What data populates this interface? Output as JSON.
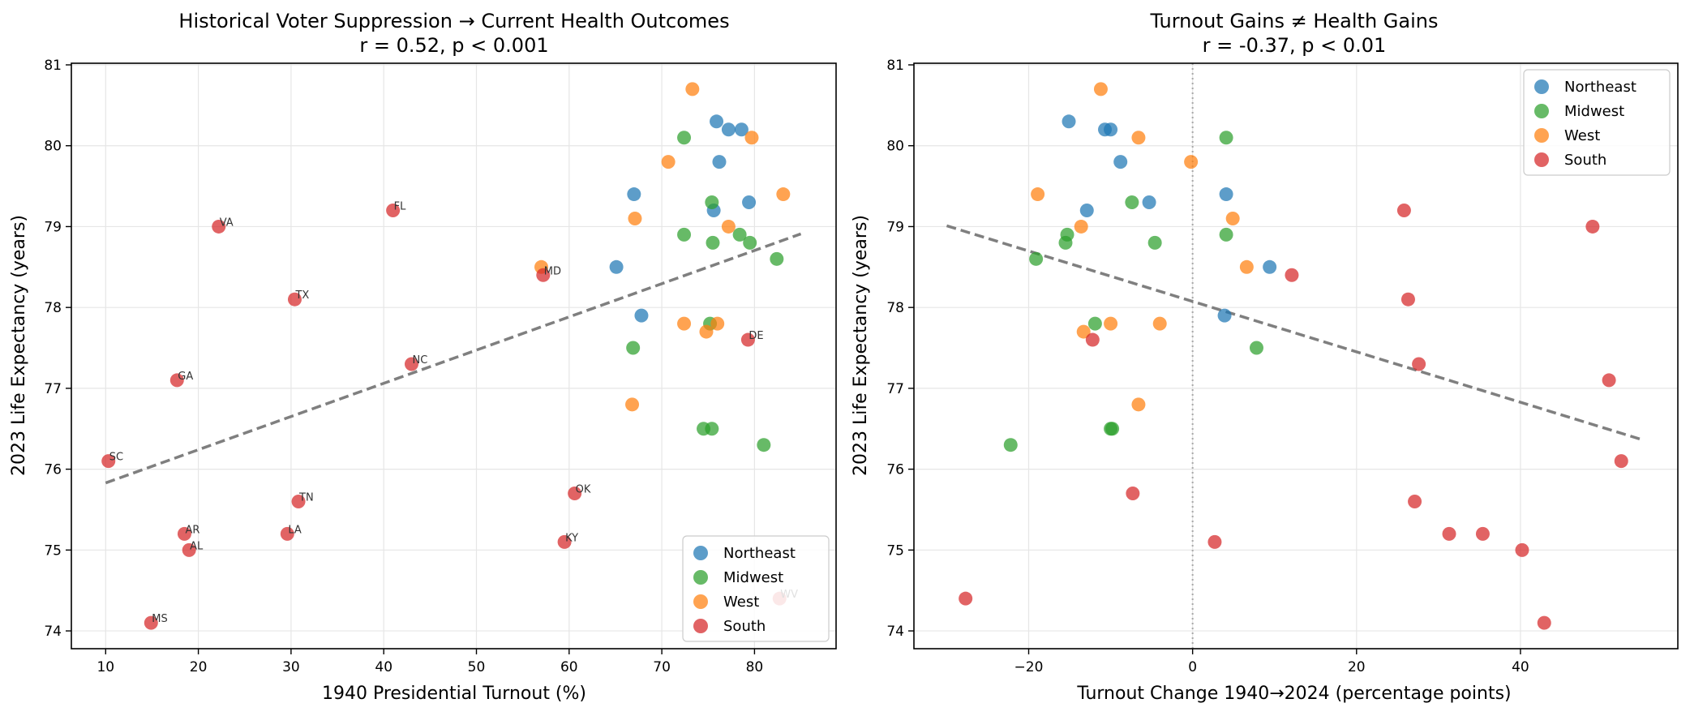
{
  "colors": {
    "Northeast": "#1f77b4",
    "Midwest": "#2ca02c",
    "West": "#ff7f0e",
    "South": "#d62728",
    "trend": "#7f7f7f",
    "grid": "#e6e6e6"
  },
  "chart_data": [
    {
      "type": "scatter",
      "title": "Historical Voter Suppression → Current Health Outcomes",
      "subtitle": "r = 0.52, p < 0.001",
      "xlabel": "1940 Presidential Turnout (%)",
      "ylabel": "2023 Life Expectancy (years)",
      "xlim": [
        6.3,
        88.8
      ],
      "ylim": [
        73.78,
        81.02
      ],
      "xticks": [
        10,
        20,
        30,
        40,
        50,
        60,
        70,
        80
      ],
      "yticks": [
        74,
        75,
        76,
        77,
        78,
        79,
        80,
        81
      ],
      "grid": true,
      "legend_position": "lower-right",
      "legend": [
        "Northeast",
        "Midwest",
        "West",
        "South"
      ],
      "trend_line": [
        [
          10.0,
          75.83
        ],
        [
          85.0,
          78.91
        ]
      ],
      "series": [
        {
          "name": "Northeast",
          "points": [
            {
              "x": 75.9,
              "y": 80.3
            },
            {
              "x": 77.2,
              "y": 80.2
            },
            {
              "x": 78.6,
              "y": 80.2
            },
            {
              "x": 76.2,
              "y": 79.8
            },
            {
              "x": 67.0,
              "y": 79.4
            },
            {
              "x": 79.4,
              "y": 79.3
            },
            {
              "x": 75.6,
              "y": 79.2
            },
            {
              "x": 65.1,
              "y": 78.5
            },
            {
              "x": 67.8,
              "y": 77.9
            }
          ]
        },
        {
          "name": "Midwest",
          "points": [
            {
              "x": 72.4,
              "y": 80.1
            },
            {
              "x": 75.4,
              "y": 79.3
            },
            {
              "x": 72.4,
              "y": 78.9
            },
            {
              "x": 78.4,
              "y": 78.9
            },
            {
              "x": 75.5,
              "y": 78.8
            },
            {
              "x": 79.5,
              "y": 78.8
            },
            {
              "x": 82.4,
              "y": 78.6
            },
            {
              "x": 75.2,
              "y": 77.8
            },
            {
              "x": 66.9,
              "y": 77.5
            },
            {
              "x": 74.5,
              "y": 76.5
            },
            {
              "x": 75.4,
              "y": 76.5
            },
            {
              "x": 81.0,
              "y": 76.3
            }
          ]
        },
        {
          "name": "West",
          "points": [
            {
              "x": 73.3,
              "y": 80.7
            },
            {
              "x": 79.7,
              "y": 80.1
            },
            {
              "x": 70.7,
              "y": 79.8
            },
            {
              "x": 83.1,
              "y": 79.4
            },
            {
              "x": 67.1,
              "y": 79.1
            },
            {
              "x": 77.2,
              "y": 79.0
            },
            {
              "x": 57.0,
              "y": 78.5
            },
            {
              "x": 72.4,
              "y": 77.8
            },
            {
              "x": 76.0,
              "y": 77.8
            },
            {
              "x": 74.8,
              "y": 77.7
            },
            {
              "x": 66.8,
              "y": 76.8
            }
          ]
        },
        {
          "name": "South",
          "points": [
            {
              "x": 41.0,
              "y": 79.2,
              "label": "FL"
            },
            {
              "x": 22.2,
              "y": 79.0,
              "label": "VA"
            },
            {
              "x": 57.2,
              "y": 78.4,
              "label": "MD"
            },
            {
              "x": 30.4,
              "y": 78.1,
              "label": "TX"
            },
            {
              "x": 79.3,
              "y": 77.6,
              "label": "DE"
            },
            {
              "x": 43.0,
              "y": 77.3,
              "label": "NC"
            },
            {
              "x": 17.7,
              "y": 77.1,
              "label": "GA"
            },
            {
              "x": 10.3,
              "y": 76.1,
              "label": "SC"
            },
            {
              "x": 60.6,
              "y": 75.7,
              "label": "OK"
            },
            {
              "x": 30.8,
              "y": 75.6,
              "label": "TN"
            },
            {
              "x": 18.5,
              "y": 75.2,
              "label": "AR"
            },
            {
              "x": 29.6,
              "y": 75.2,
              "label": "LA"
            },
            {
              "x": 59.5,
              "y": 75.1,
              "label": "KY"
            },
            {
              "x": 19.0,
              "y": 75.0,
              "label": "AL"
            },
            {
              "x": 82.7,
              "y": 74.4,
              "label": "WV"
            },
            {
              "x": 14.9,
              "y": 74.1,
              "label": "MS"
            }
          ]
        }
      ]
    },
    {
      "type": "scatter",
      "title": "Turnout Gains ≠ Health Gains",
      "subtitle": "r = -0.37, p < 0.01",
      "xlabel": "Turnout Change 1940→2024 (percentage points)",
      "ylabel": "2023 Life Expectancy (years)",
      "xlim": [
        -34.0,
        59.2
      ],
      "ylim": [
        73.78,
        81.02
      ],
      "xticks": [
        -20,
        0,
        20,
        40
      ],
      "yticks": [
        74,
        75,
        76,
        77,
        78,
        79,
        80,
        81
      ],
      "grid": true,
      "reference_line_x": 0,
      "legend_position": "upper-right",
      "legend": [
        "Northeast",
        "Midwest",
        "West",
        "South"
      ],
      "trend_line": [
        [
          -30.0,
          79.01
        ],
        [
          55.0,
          76.36
        ]
      ],
      "series": [
        {
          "name": "Northeast",
          "points": [
            {
              "x": -15.1,
              "y": 80.3
            },
            {
              "x": -10.7,
              "y": 80.2
            },
            {
              "x": -10.0,
              "y": 80.2
            },
            {
              "x": -8.8,
              "y": 79.8
            },
            {
              "x": 4.1,
              "y": 79.4
            },
            {
              "x": -5.3,
              "y": 79.3
            },
            {
              "x": -12.9,
              "y": 79.2
            },
            {
              "x": 9.4,
              "y": 78.5
            },
            {
              "x": 3.9,
              "y": 77.9
            }
          ]
        },
        {
          "name": "Midwest",
          "points": [
            {
              "x": 4.1,
              "y": 80.1
            },
            {
              "x": -7.4,
              "y": 79.3
            },
            {
              "x": 4.1,
              "y": 78.9
            },
            {
              "x": -15.3,
              "y": 78.9
            },
            {
              "x": -15.5,
              "y": 78.8
            },
            {
              "x": -4.6,
              "y": 78.8
            },
            {
              "x": -19.1,
              "y": 78.6
            },
            {
              "x": -11.9,
              "y": 77.8
            },
            {
              "x": 7.8,
              "y": 77.5
            },
            {
              "x": -10.0,
              "y": 76.5
            },
            {
              "x": -9.8,
              "y": 76.5
            },
            {
              "x": -22.2,
              "y": 76.3
            }
          ]
        },
        {
          "name": "West",
          "points": [
            {
              "x": -11.2,
              "y": 80.7
            },
            {
              "x": -6.6,
              "y": 80.1
            },
            {
              "x": -0.2,
              "y": 79.8
            },
            {
              "x": -18.9,
              "y": 79.4
            },
            {
              "x": 4.9,
              "y": 79.1
            },
            {
              "x": -13.6,
              "y": 79.0
            },
            {
              "x": 6.6,
              "y": 78.5
            },
            {
              "x": -10.0,
              "y": 77.8
            },
            {
              "x": -4.0,
              "y": 77.8
            },
            {
              "x": -13.3,
              "y": 77.7
            },
            {
              "x": -6.6,
              "y": 76.8
            }
          ]
        },
        {
          "name": "South",
          "points": [
            {
              "x": 25.8,
              "y": 79.2
            },
            {
              "x": 48.8,
              "y": 79.0
            },
            {
              "x": 12.1,
              "y": 78.4
            },
            {
              "x": 26.3,
              "y": 78.1
            },
            {
              "x": -12.2,
              "y": 77.6
            },
            {
              "x": 27.6,
              "y": 77.3
            },
            {
              "x": 50.8,
              "y": 77.1
            },
            {
              "x": 52.3,
              "y": 76.1
            },
            {
              "x": -7.3,
              "y": 75.7
            },
            {
              "x": 27.1,
              "y": 75.6
            },
            {
              "x": 31.3,
              "y": 75.2
            },
            {
              "x": 35.4,
              "y": 75.2
            },
            {
              "x": 2.7,
              "y": 75.1
            },
            {
              "x": 40.2,
              "y": 75.0
            },
            {
              "x": -27.7,
              "y": 74.4
            },
            {
              "x": 42.9,
              "y": 74.1
            }
          ]
        }
      ]
    }
  ]
}
